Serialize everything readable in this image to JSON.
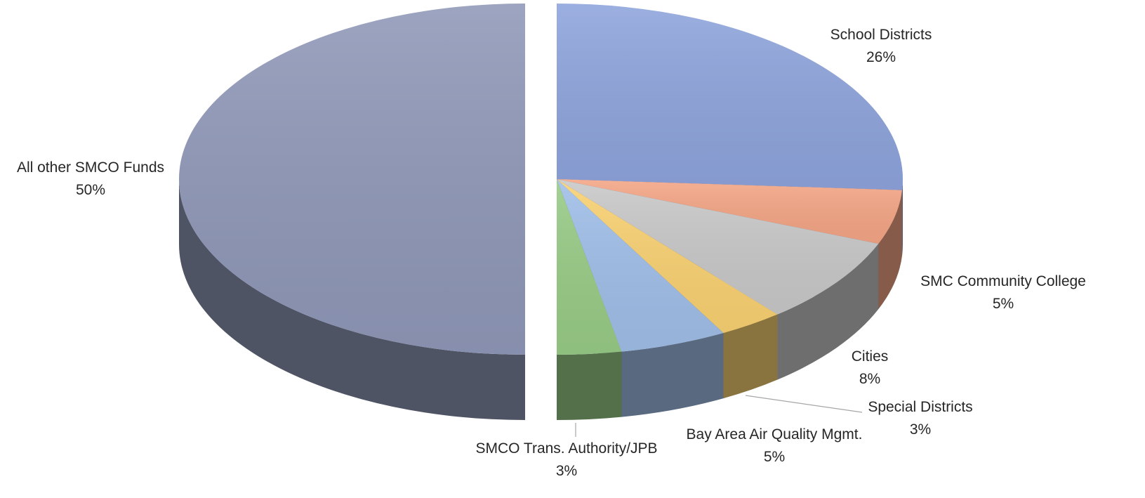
{
  "chart_data": {
    "type": "pie",
    "style": "3d-exploded",
    "slices": [
      {
        "name": "School Districts",
        "value": 26,
        "label": "26%",
        "color": "#8EA4DC"
      },
      {
        "name": "SMC Community College",
        "value": 5,
        "label": "5%",
        "color": "#F4A585"
      },
      {
        "name": "Cities",
        "value": 8,
        "label": "8%",
        "color": "#C8C8C8"
      },
      {
        "name": "Special Districts",
        "value": 3,
        "label": "3%",
        "color": "#F9D172"
      },
      {
        "name": "Bay Area Air Quality Mgmt.",
        "value": 5,
        "label": "5%",
        "color": "#A0BEE8"
      },
      {
        "name": "SMCO Trans. Authority/JPB",
        "value": 3,
        "label": "3%",
        "color": "#98CB86"
      },
      {
        "name": "All other SMCO Funds",
        "value": 50,
        "label": "50%",
        "color": "#8F98B8"
      }
    ],
    "exploded_slice": "All other SMCO Funds",
    "legend": "none"
  }
}
